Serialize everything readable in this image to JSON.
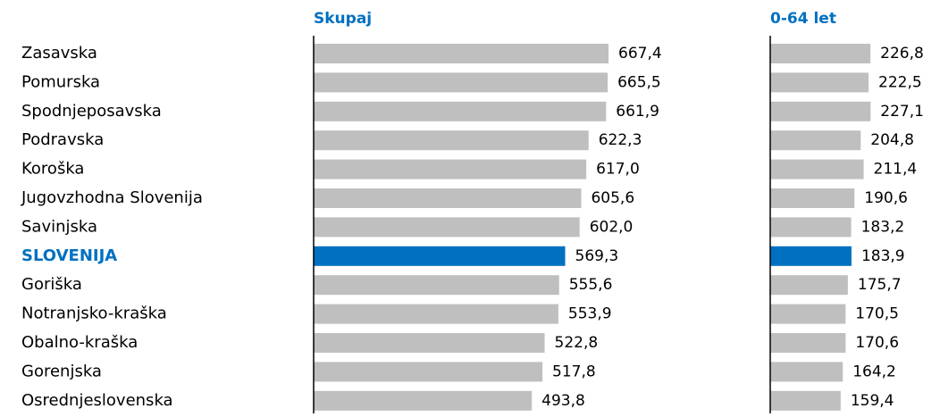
{
  "chart_data": {
    "type": "bar",
    "orientation": "horizontal",
    "categories": [
      "Zasavska",
      "Pomurska",
      "Spodnjeposavska",
      "Podravska",
      "Koroška",
      "Jugovzhodna Slovenija",
      "Savinjska",
      "SLOVENIJA",
      "Goriška",
      "Notranjsko-kraška",
      "Obalno-kraška",
      "Gorenjska",
      "Osrednjeslovenska"
    ],
    "category_colors": [
      "#000000",
      "#000000",
      "#000000",
      "#000000",
      "#000000",
      "#000000",
      "#000000",
      "#0070c0",
      "#000000",
      "#000000",
      "#000000",
      "#000000",
      "#000000"
    ],
    "series": [
      {
        "name": "Skupaj",
        "colors": [
          "#bfbfbf",
          "#bfbfbf",
          "#bfbfbf",
          "#bfbfbf",
          "#bfbfbf",
          "#bfbfbf",
          "#bfbfbf",
          "#0070c0",
          "#bfbfbf",
          "#bfbfbf",
          "#bfbfbf",
          "#bfbfbf",
          "#bfbfbf"
        ],
        "values": [
          667.4,
          665.5,
          661.9,
          622.3,
          617.0,
          605.6,
          602.0,
          569.3,
          555.6,
          553.9,
          522.8,
          517.8,
          493.8
        ],
        "value_labels": [
          "667,4",
          "665,5",
          "661,9",
          "622,3",
          "617,0",
          "605,6",
          "602,0",
          "569,3",
          "555,6",
          "553,9",
          "522,8",
          "517,8",
          "493,8"
        ]
      },
      {
        "name": "0-64 let",
        "colors": [
          "#bfbfbf",
          "#bfbfbf",
          "#bfbfbf",
          "#bfbfbf",
          "#bfbfbf",
          "#bfbfbf",
          "#bfbfbf",
          "#0070c0",
          "#bfbfbf",
          "#bfbfbf",
          "#bfbfbf",
          "#bfbfbf",
          "#bfbfbf"
        ],
        "values": [
          226.8,
          222.5,
          227.1,
          204.8,
          211.4,
          190.6,
          183.2,
          183.9,
          175.7,
          170.5,
          170.6,
          164.2,
          159.4
        ],
        "value_labels": [
          "226,8",
          "222,5",
          "227,1",
          "204,8",
          "211,4",
          "190,6",
          "183,2",
          "183,9",
          "175,7",
          "170,5",
          "170,6",
          "164,2",
          "159,4"
        ]
      }
    ]
  }
}
